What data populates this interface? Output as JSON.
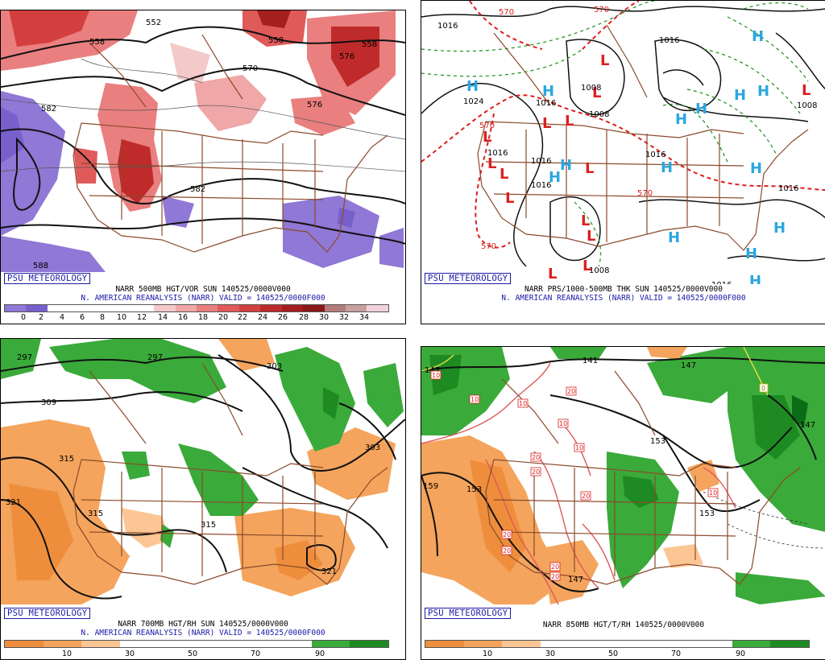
{
  "colors": {
    "vor_pos": [
      "#f3c9c9",
      "#f0a7a7",
      "#ea7f7f",
      "#e05a5a",
      "#d33e3e",
      "#bf2a2a",
      "#a51f1f",
      "#8a1818",
      "#b37b7b",
      "#c9a0a0",
      "#dcbcbc",
      "#f2d3dc"
    ],
    "vor_neg": [
      "#8f78d6",
      "#7760cc"
    ],
    "rh_dry": [
      "#ee8e3c",
      "#f4a45c",
      "#fbc694"
    ],
    "rh_wet": [
      "#3aaa3a",
      "#1d8b22",
      "#0b6b17"
    ],
    "low": "#dd1f1f",
    "high": "#2aa7e0",
    "thickness": "#dd1f1f",
    "thickness_cold": "#1a8f1a",
    "border": "#8b4a2b",
    "brand": "#1a1aa6"
  },
  "panels": {
    "p1": {
      "name": "500mb height/vorticity",
      "badge": "PSU METEOROLOGY",
      "caption1": "NARR 500MB HGT/VOR SUN 140525/0000V000",
      "caption2": "N. AMERICAN REANALYSIS (NARR) VALID = 140525/0000F000",
      "ticks": [
        "0",
        "2",
        "4",
        "6",
        "8",
        "10",
        "12",
        "14",
        "16",
        "18",
        "20",
        "22",
        "24",
        "26",
        "28",
        "30",
        "32",
        "34"
      ],
      "labels": [
        "558",
        "558",
        "570",
        "582",
        "582",
        "576",
        "588",
        "576",
        "558",
        "552"
      ]
    },
    "p2": {
      "name": "Surface pressure/1000-500mb thickness",
      "badge": "PSU METEOROLOGY",
      "caption1": "NARR PRS/1000-500MB THK SUN 140525/0000V000",
      "caption2": "N. AMERICAN REANALYSIS (NARR) VALID = 140525/0000F000",
      "labels": [
        "1016",
        "1024",
        "1016",
        "1008",
        "1016",
        "1016",
        "1008",
        "1016",
        "1016",
        "1016",
        "1016",
        "1008",
        "1016",
        "570",
        "570",
        "570",
        "570",
        "570",
        "1008"
      ]
    },
    "p3": {
      "name": "700mb height/relative humidity",
      "badge": "PSU METEOROLOGY",
      "caption1": "NARR 700MB HGT/RH SUN 140525/0000V000",
      "caption2": "N. AMERICAN REANALYSIS (NARR) VALID = 140525/0000F000",
      "ticks": [
        "10",
        "30",
        "50",
        "70",
        "90"
      ],
      "labels": [
        "297",
        "297",
        "309",
        "303",
        "315",
        "321",
        "315",
        "315",
        "303",
        "321"
      ]
    },
    "p4": {
      "name": "850mb height/temperature/relative humidity",
      "badge": "PSU METEOROLOGY",
      "caption1": "NARR 850MB HGT/T/RH 140525/0000V000",
      "ticks": [
        "10",
        "30",
        "50",
        "70",
        "90"
      ],
      "labels": [
        "147",
        "141",
        "147",
        "147",
        "153",
        "159",
        "153",
        "153",
        "147",
        "10",
        "10",
        "10",
        "20",
        "20",
        "20",
        "20",
        "20",
        "20",
        "20",
        "20",
        "10",
        "10",
        "0",
        "10"
      ]
    }
  }
}
